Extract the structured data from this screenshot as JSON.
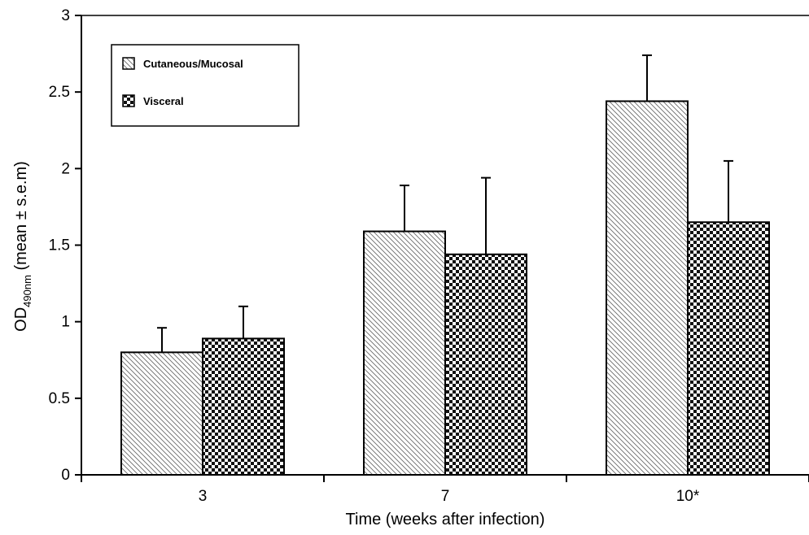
{
  "chart_data": {
    "type": "bar",
    "title": "",
    "xlabel": "Time (weeks after infection)",
    "ylabel_main": "OD",
    "ylabel_sub": "490nm",
    "ylabel_rest": " (mean ± s.e.m)",
    "categories": [
      "3",
      "7",
      "10*"
    ],
    "ylim": [
      0,
      3
    ],
    "yticks": [
      "0",
      "0.5",
      "1",
      "1.5",
      "2",
      "2.5",
      "3"
    ],
    "ytick_values": [
      0,
      0.5,
      1,
      1.5,
      2,
      2.5,
      3
    ],
    "series": [
      {
        "name": "Cutaneous/Mucosal",
        "pattern": "diagonal-hatch",
        "values": [
          0.8,
          1.59,
          2.44
        ],
        "errors": [
          0.16,
          0.3,
          0.3
        ]
      },
      {
        "name": "Visceral",
        "pattern": "checkerboard",
        "values": [
          0.89,
          1.44,
          1.65
        ],
        "errors": [
          0.21,
          0.5,
          0.4
        ]
      }
    ],
    "legend_position": "top-left",
    "grid": false
  }
}
